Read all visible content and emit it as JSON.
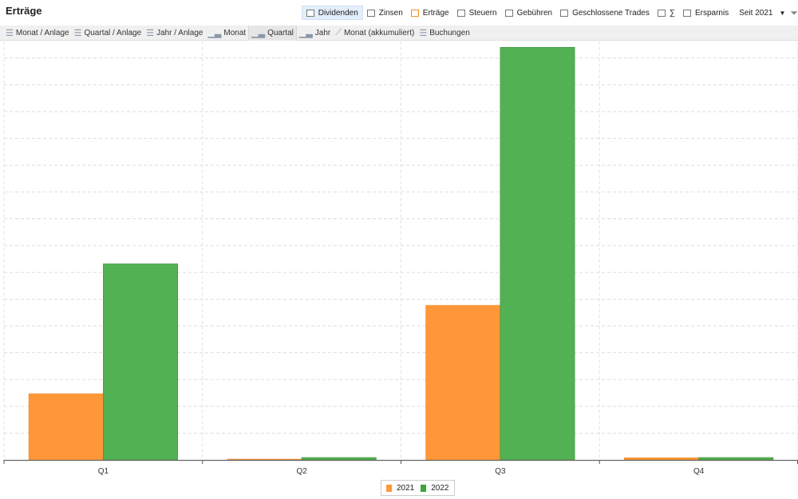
{
  "title": "Erträge",
  "filters": [
    {
      "label": "Dividenden",
      "active": true
    },
    {
      "label": "Zinsen"
    },
    {
      "label": "Erträge",
      "color": "#f28a1c"
    },
    {
      "label": "Steuern"
    },
    {
      "label": "Gebühren"
    },
    {
      "label": "Geschlossene Trades"
    },
    {
      "label": "∑"
    },
    {
      "label": "Ersparnis"
    }
  ],
  "period": "Seit 2021",
  "toolbar": [
    {
      "label": "Monat / Anlage",
      "icon": "list-icon"
    },
    {
      "label": "Quartal / Anlage",
      "icon": "list-icon"
    },
    {
      "label": "Jahr / Anlage",
      "icon": "list-icon"
    },
    {
      "label": "Monat",
      "icon": "bar-chart-icon"
    },
    {
      "label": "Quartal",
      "icon": "bar-chart-icon",
      "active": true
    },
    {
      "label": "Jahr",
      "icon": "bar-chart-icon"
    },
    {
      "label": "Monat (akkumuliert)",
      "icon": "line-chart-icon"
    },
    {
      "label": "Buchungen",
      "icon": "list-icon"
    }
  ],
  "chart_data": {
    "type": "bar",
    "categories": [
      "Q1",
      "Q2",
      "Q3",
      "Q4"
    ],
    "series": [
      {
        "name": "2021",
        "color": "#ff9738",
        "values": [
          2.47,
          0.03,
          5.77,
          0.08
        ]
      },
      {
        "name": "2022",
        "color": "#52b152",
        "values": [
          7.32,
          0.09,
          15.4,
          0.09
        ]
      }
    ],
    "ylim": [
      0,
      15.5
    ],
    "grid": true,
    "legend": "bottom-center"
  }
}
